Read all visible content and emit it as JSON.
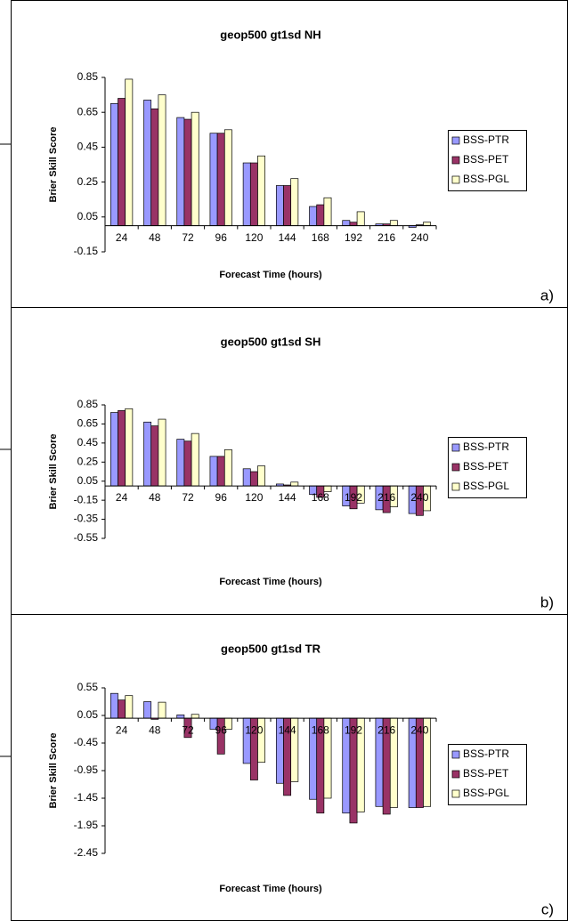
{
  "chart_data": [
    {
      "type": "bar",
      "title": "geop500 gt1sd NH",
      "panel_label": "a)",
      "x_label": "Forecast Time (hours)",
      "y_label": "Brier Skill Score",
      "categories": [
        "24",
        "48",
        "72",
        "96",
        "120",
        "144",
        "168",
        "192",
        "216",
        "240"
      ],
      "series": [
        {
          "name": "BSS-PTR",
          "color": "#9999ff",
          "values": [
            0.7,
            0.72,
            0.62,
            0.53,
            0.36,
            0.23,
            0.11,
            0.03,
            0.01,
            -0.01
          ]
        },
        {
          "name": "BSS-PET",
          "color": "#993366",
          "values": [
            0.73,
            0.67,
            0.61,
            0.53,
            0.36,
            0.23,
            0.12,
            0.02,
            0.01,
            0.005
          ]
        },
        {
          "name": "BSS-PGL",
          "color": "#ffffcc",
          "values": [
            0.84,
            0.75,
            0.65,
            0.55,
            0.4,
            0.27,
            0.16,
            0.08,
            0.03,
            0.02
          ]
        }
      ],
      "ylim": [
        -0.15,
        0.85
      ],
      "yticks": [
        -0.15,
        0.05,
        0.25,
        0.45,
        0.65,
        0.85
      ],
      "legend": "right"
    },
    {
      "type": "bar",
      "title": "geop500 gt1sd SH",
      "panel_label": "b)",
      "x_label": "Forecast Time (hours)",
      "y_label": "Brier Skill Score",
      "categories": [
        "24",
        "48",
        "72",
        "96",
        "120",
        "144",
        "168",
        "192",
        "216",
        "240"
      ],
      "series": [
        {
          "name": "BSS-PTR",
          "color": "#9999ff",
          "values": [
            0.77,
            0.67,
            0.49,
            0.31,
            0.18,
            0.02,
            -0.09,
            -0.21,
            -0.25,
            -0.29
          ]
        },
        {
          "name": "BSS-PET",
          "color": "#993366",
          "values": [
            0.79,
            0.63,
            0.47,
            0.31,
            0.15,
            0.01,
            -0.12,
            -0.24,
            -0.28,
            -0.31
          ]
        },
        {
          "name": "BSS-PGL",
          "color": "#ffffcc",
          "values": [
            0.81,
            0.7,
            0.55,
            0.38,
            0.21,
            0.04,
            -0.06,
            -0.18,
            -0.22,
            -0.26
          ]
        }
      ],
      "ylim": [
        -0.55,
        0.85
      ],
      "yticks": [
        -0.55,
        -0.35,
        -0.15,
        0.05,
        0.25,
        0.45,
        0.65,
        0.85
      ],
      "legend": "right"
    },
    {
      "type": "bar",
      "title": "geop500 gt1sd TR",
      "panel_label": "c)",
      "x_label": "Forecast Time (hours)",
      "y_label": "Brier Skill Score",
      "categories": [
        "24",
        "48",
        "72",
        "96",
        "120",
        "144",
        "168",
        "192",
        "216",
        "240"
      ],
      "series": [
        {
          "name": "BSS-PTR",
          "color": "#9999ff",
          "values": [
            0.45,
            0.3,
            0.06,
            -0.2,
            -0.82,
            -1.18,
            -1.47,
            -1.72,
            -1.6,
            -1.62
          ]
        },
        {
          "name": "BSS-PET",
          "color": "#993366",
          "values": [
            0.33,
            -0.02,
            -0.35,
            -0.65,
            -1.12,
            -1.4,
            -1.72,
            -1.9,
            -1.74,
            -1.62
          ]
        },
        {
          "name": "BSS-PGL",
          "color": "#ffffcc",
          "values": [
            0.41,
            0.29,
            0.07,
            -0.2,
            -0.8,
            -1.15,
            -1.45,
            -1.7,
            -1.62,
            -1.6
          ]
        }
      ],
      "ylim": [
        -2.45,
        0.55
      ],
      "yticks": [
        -2.45,
        -1.95,
        -1.45,
        -0.95,
        -0.45,
        0.05,
        0.55
      ],
      "legend": "right"
    }
  ]
}
